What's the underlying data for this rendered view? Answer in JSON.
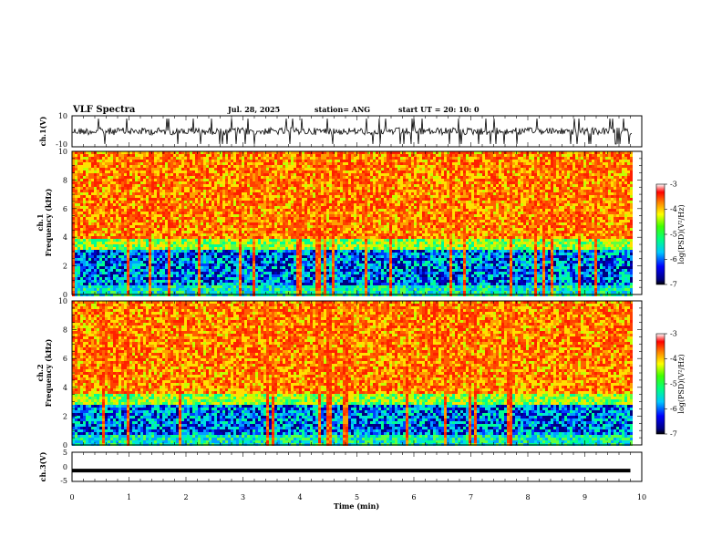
{
  "header": {
    "title": "VLF Spectra",
    "date": "Jul. 28, 2025",
    "station": "station= ANG",
    "start_ut": "start UT =  20: 10: 0"
  },
  "chart_data": [
    {
      "type": "line",
      "panel": "ch1-waveform",
      "ylabel": "ch.1(V)",
      "ylim": [
        -10,
        10
      ],
      "y_ticks": [
        "10",
        "-10"
      ],
      "series": [
        {
          "values": []
        }
      ]
    },
    {
      "type": "heatmap",
      "panel": "ch1-spectrogram",
      "ylabel_line1": "ch.1",
      "ylabel_line2": "Frequency (kHz)",
      "ylim": [
        0,
        10
      ],
      "y_ticks": [
        "0",
        "2",
        "4",
        "6",
        "8",
        "10"
      ],
      "xlim": [
        0,
        9.8
      ],
      "colorbar": {
        "label": "log(PSD)(V²/Hz)",
        "ticks": [
          "-3",
          "-4",
          "-5",
          "-6",
          "-7"
        ],
        "range": [
          -7,
          -3
        ]
      }
    },
    {
      "type": "heatmap",
      "panel": "ch2-spectrogram",
      "ylabel_line1": "ch.2",
      "ylabel_line2": "Frequency (kHz)",
      "ylim": [
        0,
        10
      ],
      "y_ticks": [
        "0",
        "2",
        "4",
        "6",
        "8",
        "10"
      ],
      "xlim": [
        0,
        9.8
      ],
      "colorbar": {
        "label": "log(PSD)(V²/Hz)",
        "ticks": [
          "-3",
          "-4",
          "-5",
          "-6",
          "-7"
        ],
        "range": [
          -7,
          -3
        ]
      }
    },
    {
      "type": "line",
      "panel": "ch3-waveform",
      "ylabel": "ch.3(V)",
      "ylim": [
        -5,
        5
      ],
      "y_ticks": [
        "5",
        "0",
        "-5"
      ],
      "series": [
        {
          "values": [
            -1.3,
            -1.3
          ]
        }
      ]
    }
  ],
  "x_axis": {
    "label": "Time (min)",
    "ticks": [
      "0",
      "1",
      "2",
      "3",
      "4",
      "5",
      "6",
      "7",
      "8",
      "9",
      "10"
    ],
    "xlim": [
      0,
      10
    ]
  }
}
